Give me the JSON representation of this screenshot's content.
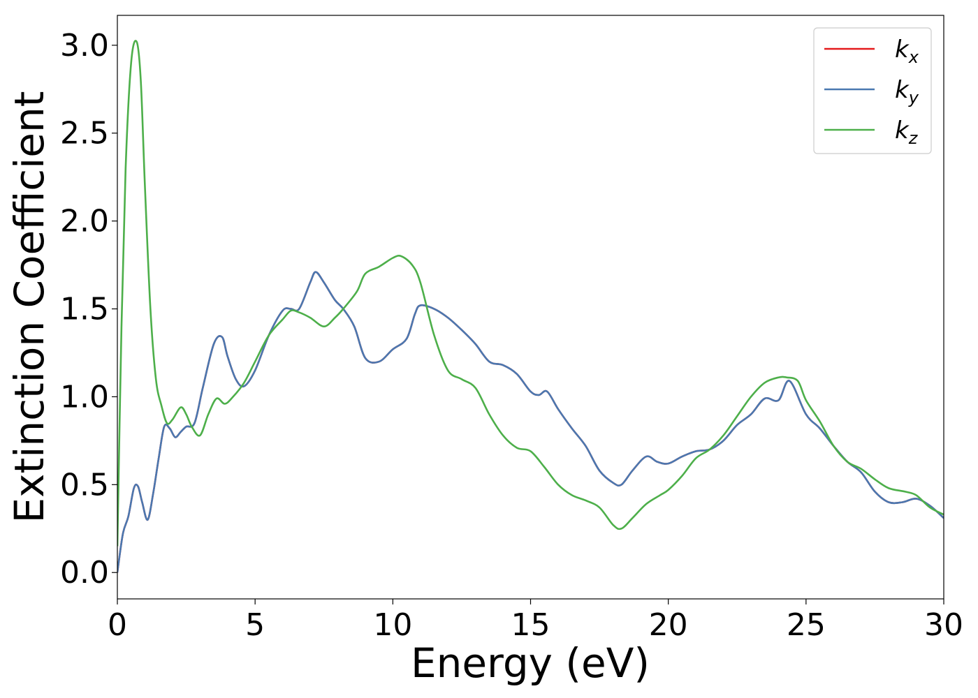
{
  "chart_data": {
    "type": "line",
    "xlabel": "Energy (eV)",
    "ylabel": "Extinction Coefficient",
    "xlim": [
      0,
      30
    ],
    "ylim": [
      -0.15,
      3.17
    ],
    "xticks": [
      0,
      5,
      10,
      15,
      20,
      25,
      30
    ],
    "xtick_labels": [
      "0",
      "5",
      "10",
      "15",
      "20",
      "25",
      "30"
    ],
    "yticks": [
      0.0,
      0.5,
      1.0,
      1.5,
      2.0,
      2.5,
      3.0
    ],
    "ytick_labels": [
      "0.0",
      "0.5",
      "1.0",
      "1.5",
      "2.0",
      "2.5",
      "3.0"
    ],
    "grid": false,
    "legend_position": "top-right",
    "series": [
      {
        "name": "k_x",
        "label_main": "k",
        "label_sub": "x",
        "color": "#e41a1c",
        "x": [
          0,
          0.2,
          0.4,
          0.6,
          0.75,
          0.9,
          1.1,
          1.3,
          1.5,
          1.7,
          1.9,
          2.1,
          2.3,
          2.5,
          2.8,
          3.1,
          3.5,
          3.8,
          4.0,
          4.3,
          4.6,
          5.0,
          5.5,
          6.0,
          6.3,
          6.6,
          7.0,
          7.2,
          7.5,
          7.9,
          8.2,
          8.6,
          9.0,
          9.5,
          10.0,
          10.5,
          10.8,
          11.0,
          11.5,
          12.0,
          12.5,
          13.0,
          13.5,
          14.0,
          14.5,
          15.0,
          15.3,
          15.6,
          16.0,
          16.5,
          17.0,
          17.5,
          18.0,
          18.3,
          18.7,
          19.2,
          19.6,
          20.0,
          20.5,
          21.0,
          21.5,
          22.0,
          22.5,
          23.0,
          23.5,
          24.0,
          24.4,
          25.0,
          25.5,
          26.0,
          26.5,
          27.0,
          27.5,
          28.0,
          28.5,
          29.0,
          29.5,
          30.0
        ],
        "y": [
          0.0,
          0.22,
          0.32,
          0.48,
          0.49,
          0.4,
          0.3,
          0.45,
          0.65,
          0.83,
          0.82,
          0.77,
          0.8,
          0.83,
          0.85,
          1.05,
          1.3,
          1.34,
          1.23,
          1.1,
          1.06,
          1.15,
          1.35,
          1.49,
          1.5,
          1.5,
          1.65,
          1.71,
          1.65,
          1.55,
          1.5,
          1.4,
          1.22,
          1.2,
          1.27,
          1.33,
          1.47,
          1.52,
          1.5,
          1.45,
          1.38,
          1.3,
          1.2,
          1.18,
          1.13,
          1.03,
          1.01,
          1.03,
          0.93,
          0.82,
          0.72,
          0.58,
          0.51,
          0.5,
          0.58,
          0.66,
          0.63,
          0.62,
          0.66,
          0.69,
          0.7,
          0.75,
          0.84,
          0.9,
          0.99,
          0.98,
          1.09,
          0.9,
          0.82,
          0.72,
          0.63,
          0.57,
          0.46,
          0.4,
          0.4,
          0.42,
          0.38,
          0.31
        ]
      },
      {
        "name": "k_y",
        "label_main": "k",
        "label_sub": "y",
        "color": "#4a78b0",
        "x": [
          0,
          0.2,
          0.4,
          0.6,
          0.75,
          0.9,
          1.1,
          1.3,
          1.5,
          1.7,
          1.9,
          2.1,
          2.3,
          2.5,
          2.8,
          3.1,
          3.5,
          3.8,
          4.0,
          4.3,
          4.6,
          5.0,
          5.5,
          6.0,
          6.3,
          6.6,
          7.0,
          7.2,
          7.5,
          7.9,
          8.2,
          8.6,
          9.0,
          9.5,
          10.0,
          10.5,
          10.8,
          11.0,
          11.5,
          12.0,
          12.5,
          13.0,
          13.5,
          14.0,
          14.5,
          15.0,
          15.3,
          15.6,
          16.0,
          16.5,
          17.0,
          17.5,
          18.0,
          18.3,
          18.7,
          19.2,
          19.6,
          20.0,
          20.5,
          21.0,
          21.5,
          22.0,
          22.5,
          23.0,
          23.5,
          24.0,
          24.4,
          25.0,
          25.5,
          26.0,
          26.5,
          27.0,
          27.5,
          28.0,
          28.5,
          29.0,
          29.5,
          30.0
        ],
        "y": [
          0.0,
          0.22,
          0.32,
          0.48,
          0.49,
          0.4,
          0.3,
          0.45,
          0.65,
          0.83,
          0.82,
          0.77,
          0.8,
          0.83,
          0.85,
          1.05,
          1.3,
          1.34,
          1.23,
          1.1,
          1.06,
          1.15,
          1.35,
          1.49,
          1.5,
          1.5,
          1.65,
          1.71,
          1.65,
          1.55,
          1.5,
          1.4,
          1.22,
          1.2,
          1.27,
          1.33,
          1.47,
          1.52,
          1.5,
          1.45,
          1.38,
          1.3,
          1.2,
          1.18,
          1.13,
          1.03,
          1.01,
          1.03,
          0.93,
          0.82,
          0.72,
          0.58,
          0.51,
          0.5,
          0.58,
          0.66,
          0.63,
          0.62,
          0.66,
          0.69,
          0.7,
          0.75,
          0.84,
          0.9,
          0.99,
          0.98,
          1.09,
          0.9,
          0.82,
          0.72,
          0.63,
          0.57,
          0.46,
          0.4,
          0.4,
          0.42,
          0.38,
          0.31
        ]
      },
      {
        "name": "k_z",
        "label_main": "k",
        "label_sub": "z",
        "color": "#4daf4a",
        "x": [
          0,
          0.15,
          0.3,
          0.5,
          0.7,
          0.85,
          1.0,
          1.2,
          1.4,
          1.6,
          1.8,
          2.0,
          2.3,
          2.5,
          2.7,
          3.0,
          3.3,
          3.6,
          3.9,
          4.2,
          4.6,
          5.0,
          5.5,
          6.0,
          6.3,
          6.6,
          7.0,
          7.5,
          7.9,
          8.2,
          8.7,
          9.0,
          9.5,
          10.0,
          10.3,
          10.7,
          11.0,
          11.5,
          12.0,
          12.5,
          13.0,
          13.5,
          14.0,
          14.5,
          15.0,
          15.5,
          16.0,
          16.5,
          17.0,
          17.5,
          18.0,
          18.3,
          18.7,
          19.2,
          19.7,
          20.0,
          20.5,
          21.0,
          21.5,
          22.0,
          22.5,
          23.0,
          23.5,
          24.0,
          24.3,
          24.7,
          25.0,
          25.5,
          26.0,
          26.5,
          27.0,
          27.5,
          28.0,
          28.6,
          29.0,
          29.5,
          30.0
        ],
        "y": [
          0.15,
          1.4,
          2.3,
          2.9,
          3.02,
          2.8,
          2.2,
          1.5,
          1.1,
          0.95,
          0.85,
          0.87,
          0.94,
          0.9,
          0.83,
          0.78,
          0.9,
          0.99,
          0.96,
          1.0,
          1.08,
          1.2,
          1.35,
          1.44,
          1.49,
          1.48,
          1.45,
          1.4,
          1.45,
          1.5,
          1.6,
          1.7,
          1.74,
          1.79,
          1.8,
          1.75,
          1.65,
          1.35,
          1.15,
          1.1,
          1.05,
          0.9,
          0.78,
          0.71,
          0.69,
          0.6,
          0.5,
          0.44,
          0.41,
          0.37,
          0.27,
          0.25,
          0.31,
          0.39,
          0.44,
          0.47,
          0.55,
          0.65,
          0.7,
          0.78,
          0.89,
          1.0,
          1.08,
          1.11,
          1.11,
          1.09,
          0.98,
          0.86,
          0.72,
          0.63,
          0.59,
          0.53,
          0.48,
          0.46,
          0.44,
          0.37,
          0.33
        ]
      }
    ]
  }
}
